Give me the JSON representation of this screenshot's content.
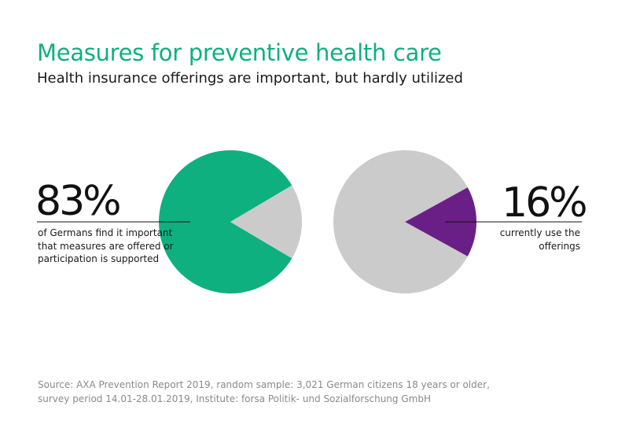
{
  "header": {
    "title": "Measures for preventive health care",
    "subtitle": "Health insurance offerings are important, but hardly utilized"
  },
  "colors": {
    "title": "#0fb07f",
    "green": "#0fb07f",
    "purple": "#6a1f86",
    "gray": "#cbcbcb"
  },
  "chart_data": [
    {
      "type": "pie",
      "title": "",
      "slices": [
        {
          "label": "83%",
          "value": 83,
          "color": "#0fb07f"
        },
        {
          "label": "",
          "value": 17,
          "color": "#cbcbcb"
        }
      ],
      "label": "83%",
      "description": "of Germans find it important that measures are offered or participation is supported"
    },
    {
      "type": "pie",
      "title": "",
      "slices": [
        {
          "label": "16%",
          "value": 16,
          "color": "#6a1f86"
        },
        {
          "label": "",
          "value": 84,
          "color": "#cbcbcb"
        }
      ],
      "label": "16%",
      "description": "currently use the offerings"
    }
  ],
  "footer": {
    "source_line1": "Source: AXA Prevention Report 2019, random sample: 3,021 German citizens 18 years or older,",
    "source_line2": "survey period 14.01-28.01.2019, Institute: forsa Politik- und Sozialforschung GmbH"
  }
}
